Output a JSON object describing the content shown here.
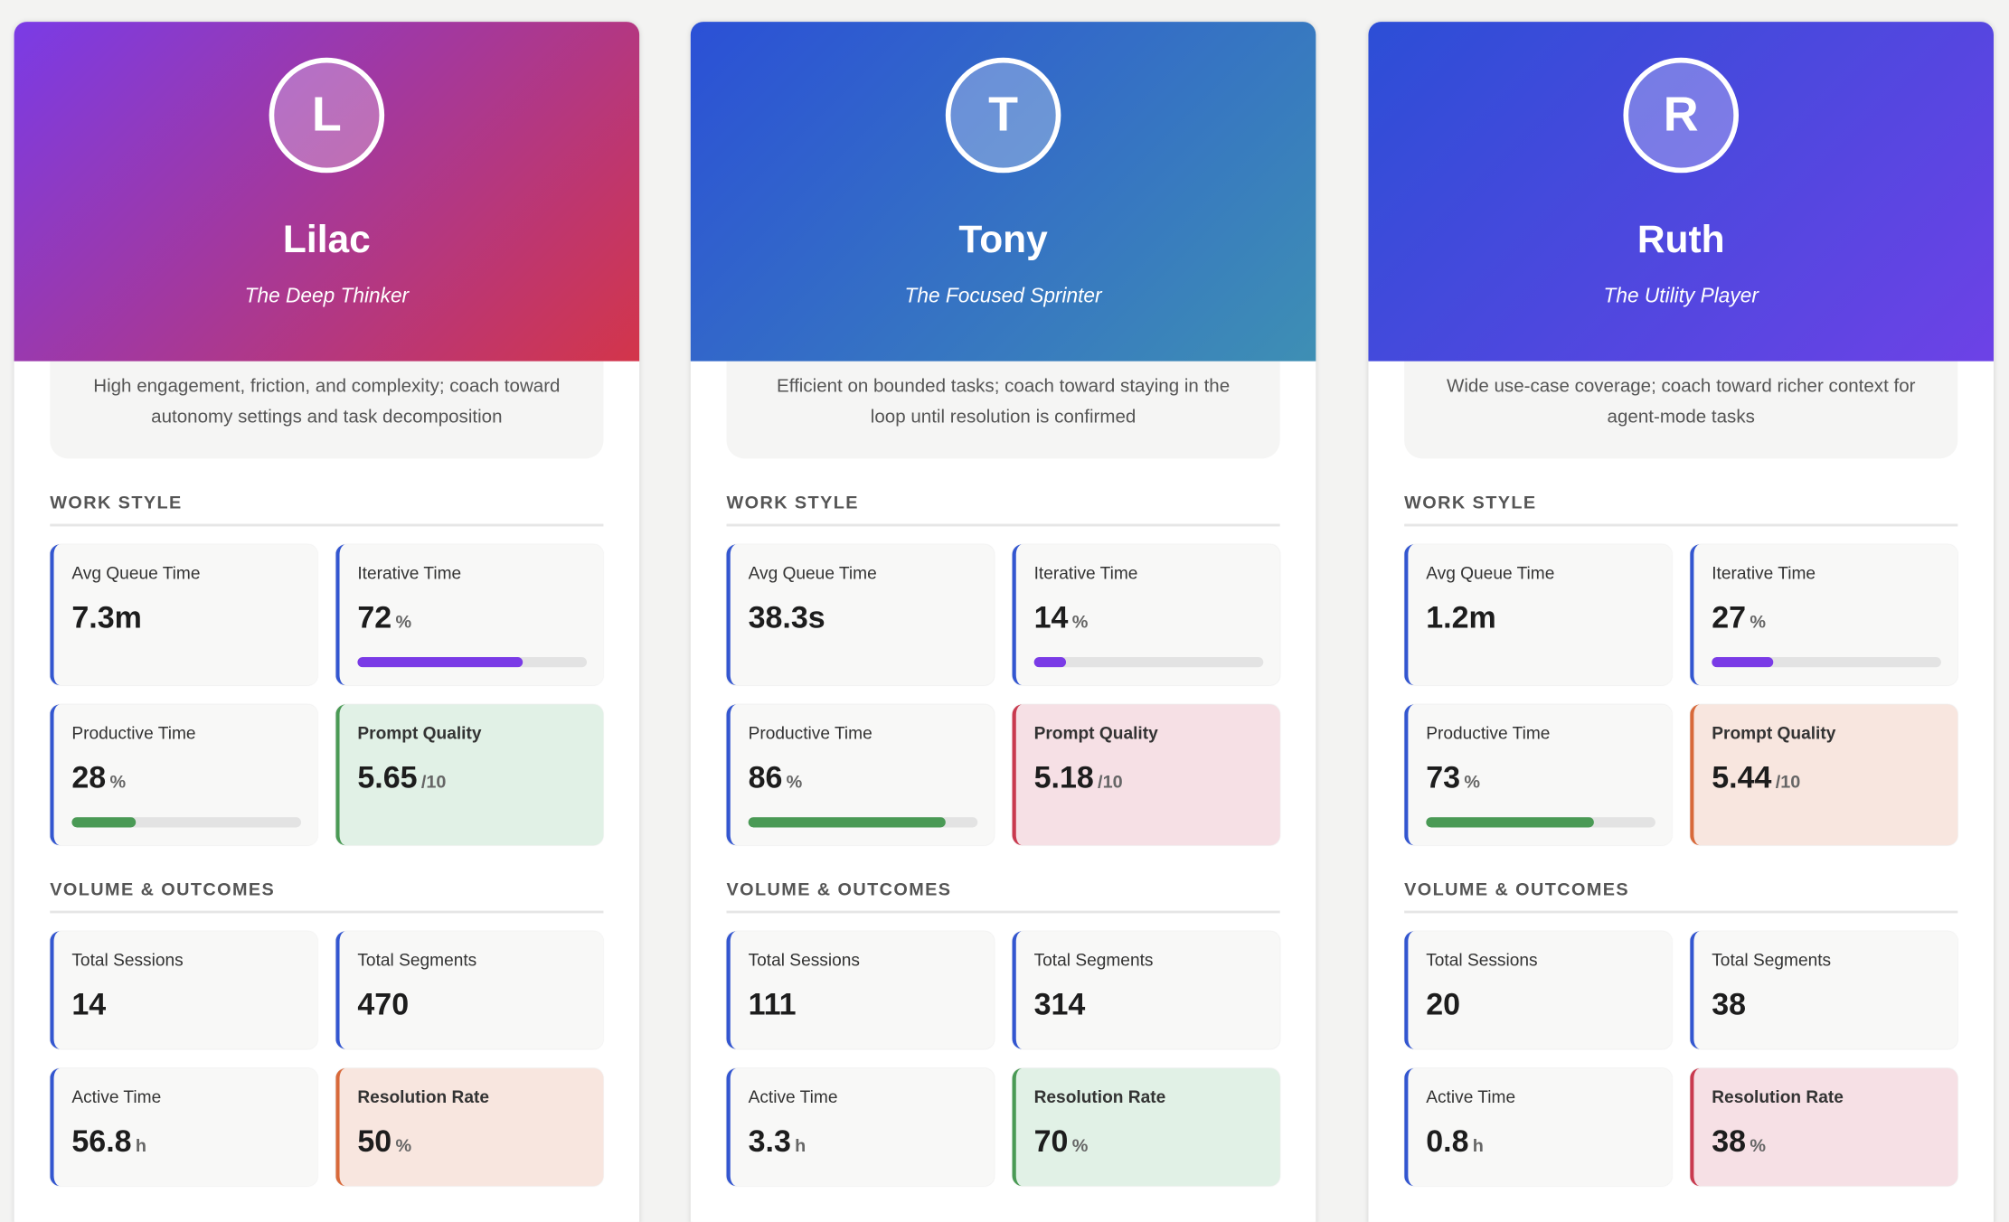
{
  "bar_scale": [
    0,
    100
  ],
  "cards": [
    {
      "initial": "L",
      "name": "Lilac",
      "persona": "The Deep Thinker",
      "gradient": [
        "#7a3be6",
        "#d3354a"
      ],
      "summary": "High engagement, friction, and complexity; coach toward autonomy settings and task decomposition",
      "sections": [
        {
          "title": "WORK STYLE",
          "metrics": [
            {
              "label": "Avg Queue Time",
              "value": "7.3m"
            },
            {
              "label": "Iterative Time",
              "value": 72,
              "unit": "%",
              "bar_color": "#7a3be6"
            },
            {
              "label": "Productive Time",
              "value": 28,
              "unit": "%",
              "bar_color": "#4a9a55"
            },
            {
              "label": "Prompt Quality",
              "value": 5.65,
              "unit": "/10",
              "tone": "green"
            }
          ]
        },
        {
          "title": "VOLUME & OUTCOMES",
          "metrics": [
            {
              "label": "Total Sessions",
              "value": 14
            },
            {
              "label": "Total Segments",
              "value": 470
            },
            {
              "label": "Active Time",
              "value": 56.8,
              "unit": "h"
            },
            {
              "label": "Resolution Rate",
              "value": 50,
              "unit": "%",
              "tone": "orange"
            }
          ]
        }
      ]
    },
    {
      "initial": "T",
      "name": "Tony",
      "persona": "The Focused Sprinter",
      "gradient": [
        "#2b50d6",
        "#3e8fb4"
      ],
      "summary": "Efficient on bounded tasks; coach toward staying in the loop until resolution is confirmed",
      "sections": [
        {
          "title": "WORK STYLE",
          "metrics": [
            {
              "label": "Avg Queue Time",
              "value": "38.3s"
            },
            {
              "label": "Iterative Time",
              "value": 14,
              "unit": "%",
              "bar_color": "#7a3be6"
            },
            {
              "label": "Productive Time",
              "value": 86,
              "unit": "%",
              "bar_color": "#4a9a55"
            },
            {
              "label": "Prompt Quality",
              "value": 5.18,
              "unit": "/10",
              "tone": "pink"
            }
          ]
        },
        {
          "title": "VOLUME & OUTCOMES",
          "metrics": [
            {
              "label": "Total Sessions",
              "value": 111
            },
            {
              "label": "Total Segments",
              "value": 314
            },
            {
              "label": "Active Time",
              "value": 3.3,
              "unit": "h"
            },
            {
              "label": "Resolution Rate",
              "value": 70,
              "unit": "%",
              "tone": "green"
            }
          ]
        }
      ]
    },
    {
      "initial": "R",
      "name": "Ruth",
      "persona": "The Utility Player",
      "gradient": [
        "#2c4ed6",
        "#6d42e6"
      ],
      "summary": "Wide use-case coverage; coach toward richer context for agent-mode tasks",
      "sections": [
        {
          "title": "WORK STYLE",
          "metrics": [
            {
              "label": "Avg Queue Time",
              "value": "1.2m"
            },
            {
              "label": "Iterative Time",
              "value": 27,
              "unit": "%",
              "bar_color": "#7a3be6"
            },
            {
              "label": "Productive Time",
              "value": 73,
              "unit": "%",
              "bar_color": "#4a9a55"
            },
            {
              "label": "Prompt Quality",
              "value": 5.44,
              "unit": "/10",
              "tone": "orange"
            }
          ]
        },
        {
          "title": "VOLUME & OUTCOMES",
          "metrics": [
            {
              "label": "Total Sessions",
              "value": 20
            },
            {
              "label": "Total Segments",
              "value": 38
            },
            {
              "label": "Active Time",
              "value": 0.8,
              "unit": "h"
            },
            {
              "label": "Resolution Rate",
              "value": 38,
              "unit": "%",
              "tone": "pink"
            }
          ]
        }
      ]
    }
  ]
}
